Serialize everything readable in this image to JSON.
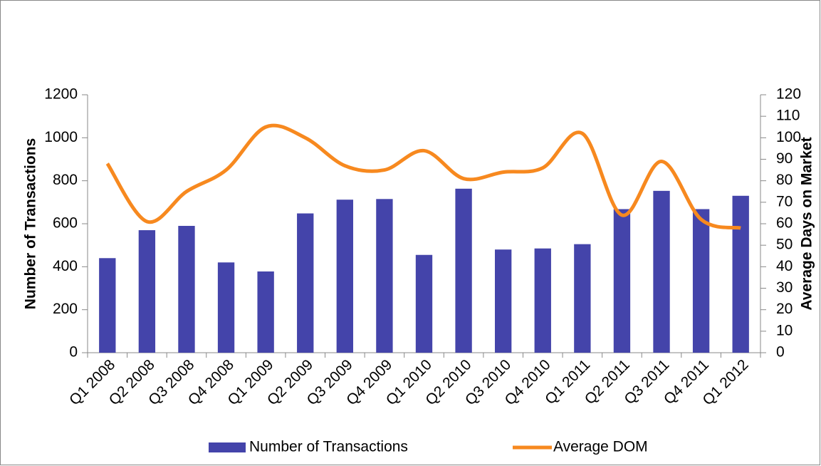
{
  "chart_data": {
    "type": "bar",
    "categories": [
      "Q1 2008",
      "Q2 2008",
      "Q3 2008",
      "Q4 2008",
      "Q1 2009",
      "Q2 2009",
      "Q3 2009",
      "Q4 2009",
      "Q1 2010",
      "Q2 2010",
      "Q3 2010",
      "Q4 2010",
      "Q1 2011",
      "Q2 2011",
      "Q3 2011",
      "Q4 2011",
      "Q1 2012"
    ],
    "series": [
      {
        "name": "Number of Transactions",
        "type": "bar",
        "color": "#4444aa",
        "values": [
          440,
          570,
          590,
          420,
          378,
          648,
          712,
          715,
          455,
          763,
          480,
          485,
          505,
          668,
          753,
          668,
          730
        ]
      },
      {
        "name": "Average DOM",
        "type": "line",
        "axis": "y2",
        "color": "#f7891f",
        "values": [
          88,
          61,
          75,
          85,
          105,
          100,
          87,
          85,
          94,
          81,
          84,
          86,
          102,
          64,
          89,
          62,
          58
        ]
      }
    ],
    "y_label": "Number of Transactions",
    "y2_label": "Average Days on Market",
    "ylim": [
      0,
      1200
    ],
    "yticks": [
      0,
      200,
      400,
      600,
      800,
      1000,
      1200
    ],
    "y2lim": [
      0,
      120
    ],
    "y2ticks": [
      0,
      10,
      20,
      30,
      40,
      50,
      60,
      70,
      80,
      90,
      100,
      110,
      120
    ],
    "legend": "bottom"
  }
}
